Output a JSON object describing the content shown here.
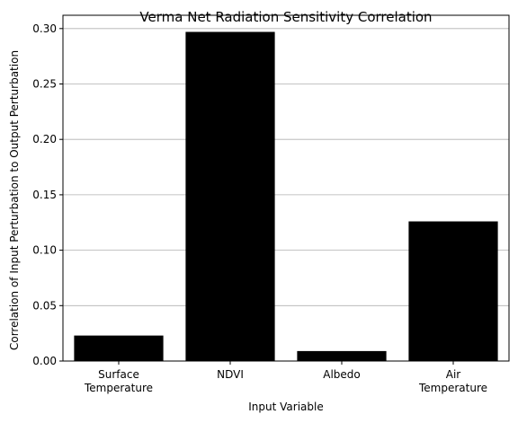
{
  "chart_data": {
    "type": "bar",
    "title": "Verma Net Radiation Sensitivity Correlation",
    "xlabel": "Input Variable",
    "ylabel": "Correlation of Input Perturbation to Output Perturbation",
    "categories": [
      [
        "Surface",
        "Temperature"
      ],
      [
        "NDVI"
      ],
      [
        "Albedo"
      ],
      [
        "Air",
        "Temperature"
      ]
    ],
    "values": [
      0.023,
      0.297,
      0.009,
      0.126
    ],
    "ylim": [
      0,
      0.312
    ],
    "yticks": [
      "0.00",
      "0.05",
      "0.10",
      "0.15",
      "0.20",
      "0.25",
      "0.30"
    ],
    "grid": "y",
    "bar_color": "#000000",
    "grid_color": "#b0b0b0"
  }
}
